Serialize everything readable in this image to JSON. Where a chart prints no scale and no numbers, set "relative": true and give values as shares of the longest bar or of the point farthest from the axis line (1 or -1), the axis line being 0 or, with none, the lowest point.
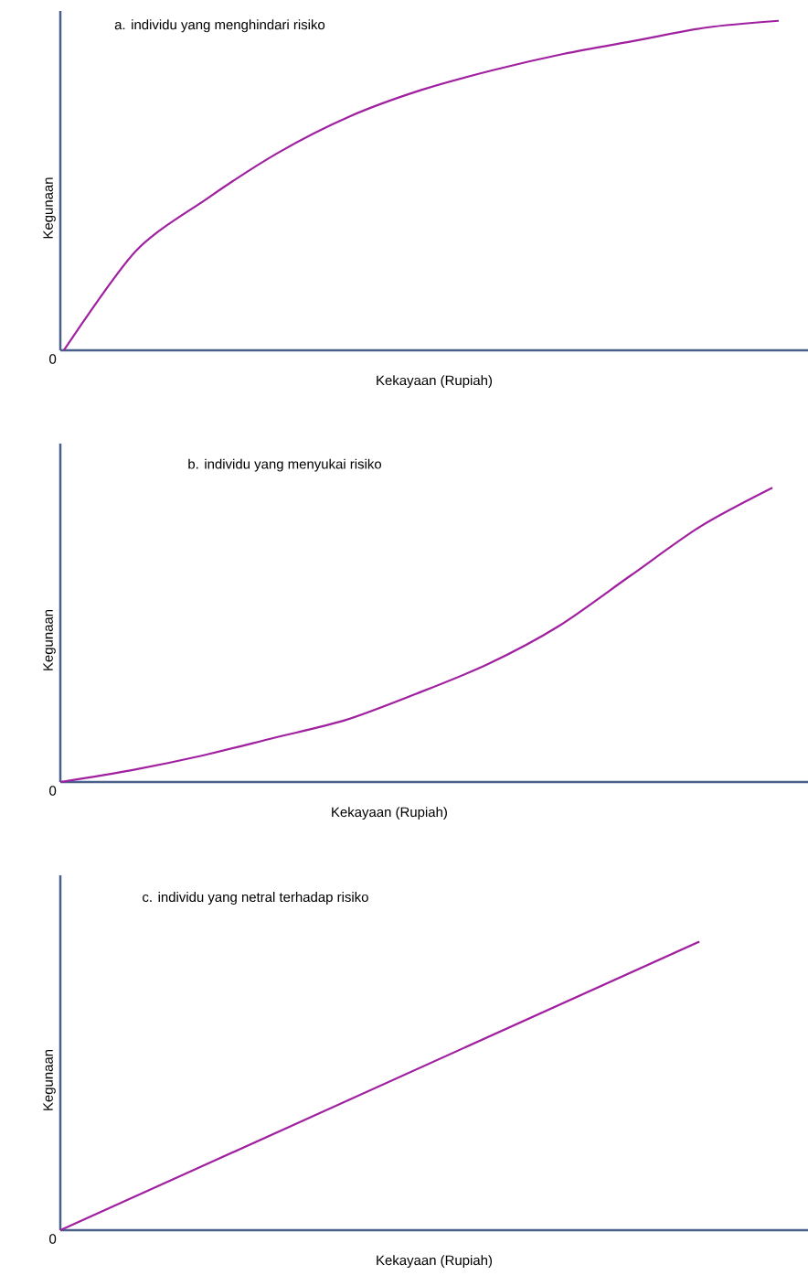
{
  "chart_data": [
    {
      "type": "line",
      "title": "a. individu yang menghindari risiko",
      "xlabel": "Kekayaan (Rupiah)",
      "ylabel": "Kegunaan",
      "relative": true,
      "color": "#a020a0",
      "annotations": [
        "0"
      ],
      "categories": [
        null,
        null,
        null,
        null,
        null,
        null,
        null,
        null,
        null,
        null,
        null
      ],
      "values": [
        0,
        0.3,
        0.46,
        0.6,
        0.71,
        0.79,
        0.85,
        0.9,
        0.94,
        0.98,
        1
      ]
    },
    {
      "type": "line",
      "title": "b. individu yang menyukai risiko",
      "xlabel": "Kekayaan (Rupiah)",
      "ylabel": "Kegunaan",
      "relative": true,
      "color": "#a020a0",
      "annotations": [
        "0"
      ],
      "categories": [
        null,
        null,
        null,
        null,
        null,
        null,
        null,
        null,
        null,
        null,
        null
      ],
      "values": [
        0,
        0.04,
        0.09,
        0.15,
        0.21,
        0.3,
        0.4,
        0.53,
        0.7,
        0.87,
        1
      ]
    },
    {
      "type": "line",
      "title": "c. individu yang netral terhadap risiko",
      "xlabel": "Kekayaan (Rupiah)",
      "ylabel": "Kegunaan",
      "relative": true,
      "color": "#a020a0",
      "annotations": [
        "0"
      ],
      "categories": [
        null,
        null
      ],
      "values": [
        0,
        1
      ]
    }
  ]
}
